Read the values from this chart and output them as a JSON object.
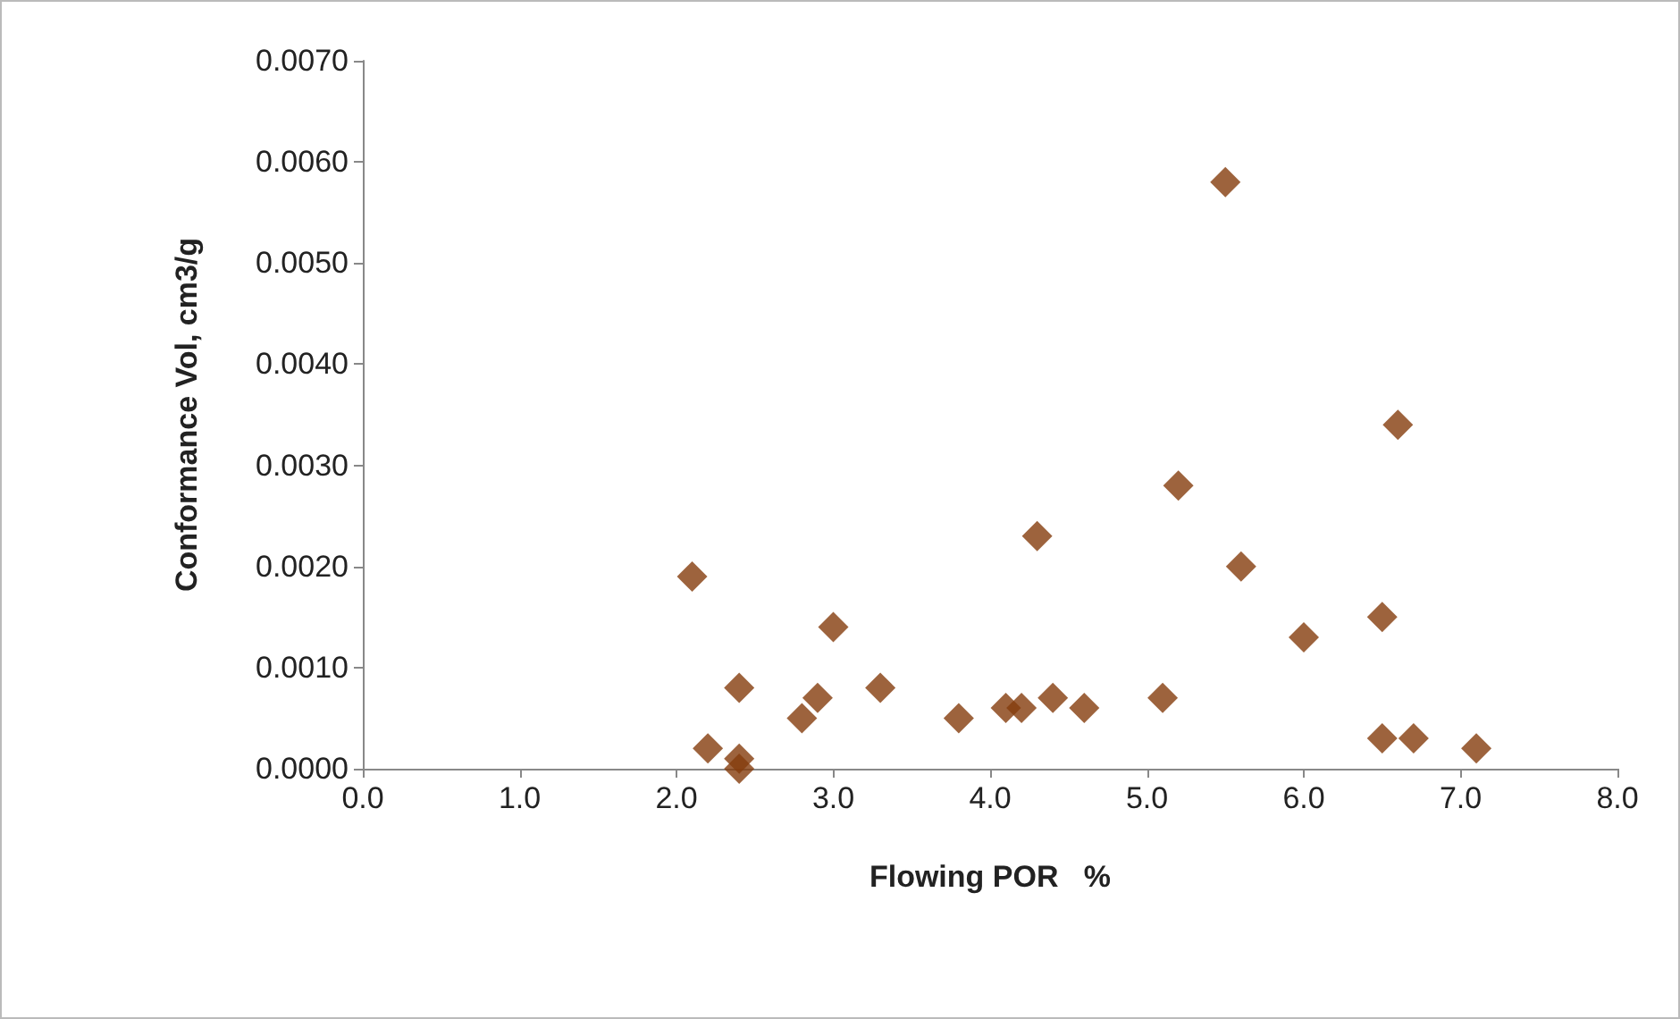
{
  "chart_data": {
    "type": "scatter",
    "xlabel": "Flowing POR   %",
    "ylabel": "Conformance Vol, cm3/g",
    "marker": "diamond",
    "grid": false,
    "series": [
      {
        "color": "#843c0c",
        "x": [
          2.1,
          2.2,
          2.4,
          2.4,
          2.4,
          2.8,
          2.9,
          3.0,
          3.3,
          3.8,
          4.1,
          4.2,
          4.3,
          4.4,
          4.6,
          5.5,
          6.6,
          5.2,
          5.6,
          6.0,
          6.5,
          5.1,
          6.5,
          6.7,
          7.1
        ],
        "values": [
          0.0019,
          0.0002,
          0.0008,
          0.0001,
          0.0,
          0.0005,
          0.0007,
          0.0014,
          0.0008,
          0.0005,
          0.0006,
          0.0006,
          0.0023,
          0.0007,
          0.0006,
          0.0058,
          0.0034,
          0.0028,
          0.002,
          0.0013,
          0.0015,
          0.0007,
          0.0003,
          0.0003,
          0.0002
        ]
      }
    ],
    "xlim": [
      0,
      8
    ],
    "xticks": [
      {
        "value": 0,
        "label": "0.0"
      },
      {
        "value": 1,
        "label": "1.0"
      },
      {
        "value": 2,
        "label": "2.0"
      },
      {
        "value": 3,
        "label": "3.0"
      },
      {
        "value": 4,
        "label": "4.0"
      },
      {
        "value": 5,
        "label": "5.0"
      },
      {
        "value": 6,
        "label": "6.0"
      },
      {
        "value": 7,
        "label": "7.0"
      },
      {
        "value": 8,
        "label": "8.0"
      }
    ],
    "ylim": [
      0,
      0.007
    ],
    "yticks": [
      {
        "value": 0,
        "label": "0.0000"
      },
      {
        "value": 0.001,
        "label": "0.0010"
      },
      {
        "value": 0.002,
        "label": "0.0020"
      },
      {
        "value": 0.003,
        "label": "0.0030"
      },
      {
        "value": 0.004,
        "label": "0.0040"
      },
      {
        "value": 0.005,
        "label": "0.0050"
      },
      {
        "value": 0.006,
        "label": "0.0060"
      },
      {
        "value": 0.007,
        "label": "0.0070"
      }
    ]
  }
}
